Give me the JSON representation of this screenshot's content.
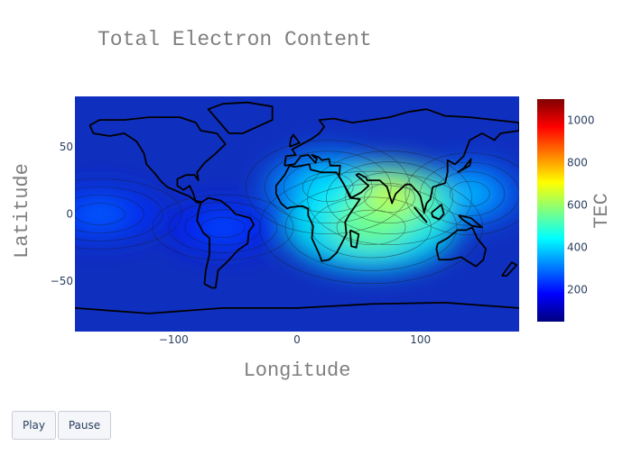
{
  "chart_data": {
    "type": "heatmap",
    "title": "Total Electron Content",
    "xlabel": "Longitude",
    "ylabel": "Latitude",
    "xlim": [
      -180,
      180
    ],
    "ylim": [
      -87.5,
      87.5
    ],
    "xticks": [
      -100,
      0,
      100
    ],
    "xtick_labels": [
      "−100",
      "0",
      "100"
    ],
    "yticks": [
      50,
      0,
      -50
    ],
    "ytick_labels": [
      "50",
      "0",
      "−50"
    ],
    "colorbar": {
      "title": "TEC",
      "range": [
        50,
        1100
      ],
      "ticks": [
        200,
        400,
        600,
        800,
        1000
      ],
      "tick_labels": [
        "200",
        "400",
        "600",
        "800",
        "1000"
      ],
      "colors": [
        "#00007f",
        "#0000ff",
        "#0080ff",
        "#00ffff",
        "#80ff80",
        "#ffff00",
        "#ff8000",
        "#ff0000",
        "#7f0000"
      ]
    },
    "contour_lines": true,
    "overlay": "coastlines and country borders",
    "grid": false,
    "legend": "none",
    "features": [
      {
        "lon": 75,
        "lat": 12,
        "tec": 660
      },
      {
        "lon": 60,
        "lat": -10,
        "tec": 560
      },
      {
        "lon": 25,
        "lat": 20,
        "tec": 420
      },
      {
        "lon": 140,
        "lat": 15,
        "tec": 380
      },
      {
        "lon": -160,
        "lat": 0,
        "tec": 280
      },
      {
        "lon": -60,
        "lat": -10,
        "tec": 260
      }
    ]
  },
  "controls": {
    "play_label": "Play",
    "pause_label": "Pause"
  }
}
